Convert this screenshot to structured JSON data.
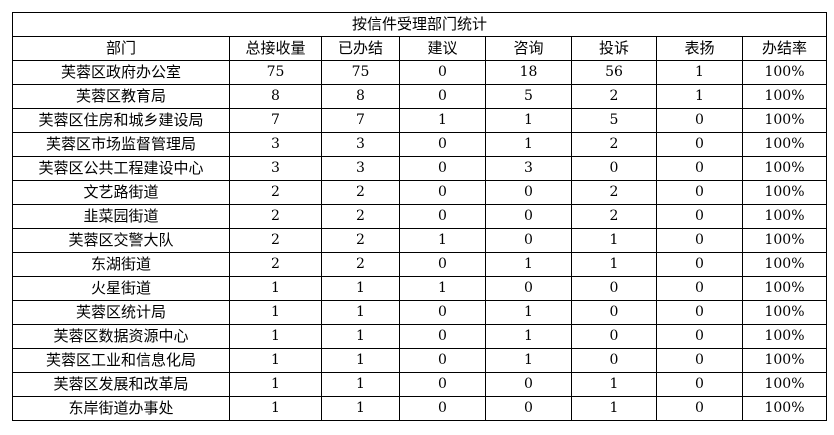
{
  "title": "按信件受理部门统计",
  "headers": [
    "部门",
    "总接收量",
    "已办结",
    "建议",
    "咨询",
    "投诉",
    "表扬",
    "办结率"
  ],
  "rows": [
    [
      "芙蓉区政府办公室",
      "75",
      "75",
      "0",
      "18",
      "56",
      "1",
      "100%"
    ],
    [
      "芙蓉区教育局",
      "8",
      "8",
      "0",
      "5",
      "2",
      "1",
      "100%"
    ],
    [
      "芙蓉区住房和城乡建设局",
      "7",
      "7",
      "1",
      "1",
      "5",
      "0",
      "100%"
    ],
    [
      "芙蓉区市场监督管理局",
      "3",
      "3",
      "0",
      "1",
      "2",
      "0",
      "100%"
    ],
    [
      "芙蓉区公共工程建设中心",
      "3",
      "3",
      "0",
      "3",
      "0",
      "0",
      "100%"
    ],
    [
      "文艺路街道",
      "2",
      "2",
      "0",
      "0",
      "2",
      "0",
      "100%"
    ],
    [
      "韭菜园街道",
      "2",
      "2",
      "0",
      "0",
      "2",
      "0",
      "100%"
    ],
    [
      "芙蓉区交警大队",
      "2",
      "2",
      "1",
      "0",
      "1",
      "0",
      "100%"
    ],
    [
      "东湖街道",
      "2",
      "2",
      "0",
      "1",
      "1",
      "0",
      "100%"
    ],
    [
      "火星街道",
      "1",
      "1",
      "1",
      "0",
      "0",
      "0",
      "100%"
    ],
    [
      "芙蓉区统计局",
      "1",
      "1",
      "0",
      "1",
      "0",
      "0",
      "100%"
    ],
    [
      "芙蓉区数据资源中心",
      "1",
      "1",
      "0",
      "1",
      "0",
      "0",
      "100%"
    ],
    [
      "芙蓉区工业和信息化局",
      "1",
      "1",
      "0",
      "1",
      "0",
      "0",
      "100%"
    ],
    [
      "芙蓉区发展和改革局",
      "1",
      "1",
      "0",
      "0",
      "1",
      "0",
      "100%"
    ],
    [
      "东岸街道办事处",
      "1",
      "1",
      "0",
      "0",
      "1",
      "0",
      "100%"
    ]
  ]
}
